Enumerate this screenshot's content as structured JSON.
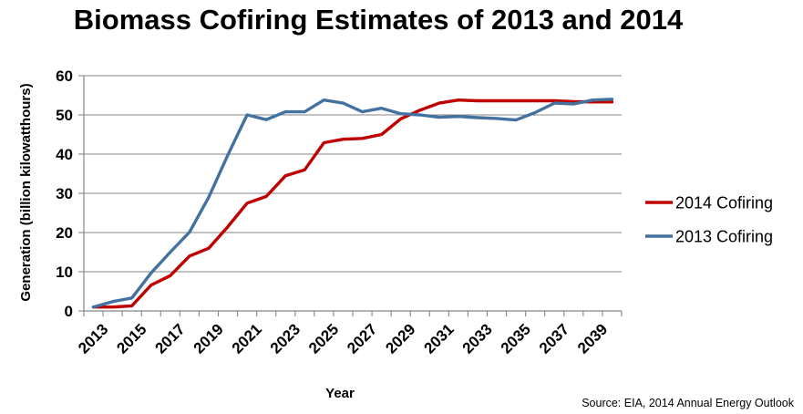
{
  "chart_data": {
    "type": "line",
    "title": "Biomass Cofiring Estimates of 2013 and 2014",
    "xlabel": "Year",
    "ylabel": "Generation (billion kilowatthours)",
    "source": "Source: EIA, 2014 Annual Energy Outlook",
    "x": [
      2013,
      2014,
      2015,
      2016,
      2017,
      2018,
      2019,
      2020,
      2021,
      2022,
      2023,
      2024,
      2025,
      2026,
      2027,
      2028,
      2029,
      2030,
      2031,
      2032,
      2033,
      2034,
      2035,
      2036,
      2037,
      2038,
      2039,
      2040
    ],
    "x_tick_labels": [
      "2013",
      "2015",
      "2017",
      "2019",
      "2021",
      "2023",
      "2025",
      "2027",
      "2029",
      "2031",
      "2033",
      "2035",
      "2037",
      "2039"
    ],
    "ylim": [
      0,
      60
    ],
    "y_ticks": [
      0,
      10,
      20,
      30,
      40,
      50,
      60
    ],
    "grid": "horizontal",
    "legend_position": "right",
    "series": [
      {
        "name": "2014 Cofiring",
        "color": "#C00000",
        "values": [
          1.0,
          1.0,
          1.3,
          6.6,
          9.0,
          14.0,
          16.0,
          21.5,
          27.5,
          29.2,
          34.5,
          36.0,
          42.9,
          43.8,
          44.0,
          45.0,
          49.0,
          51.2,
          53.0,
          53.8,
          53.6,
          53.6,
          53.6,
          53.6,
          53.6,
          53.4,
          53.3,
          53.3
        ]
      },
      {
        "name": "2013 Cofiring",
        "color": "#4472A0",
        "values": [
          1.0,
          2.4,
          3.3,
          9.7,
          15.0,
          20.1,
          29.0,
          39.8,
          50.0,
          48.8,
          50.8,
          50.8,
          53.8,
          53.0,
          50.8,
          51.7,
          50.3,
          50.0,
          49.4,
          49.6,
          49.3,
          49.1,
          48.7,
          50.6,
          53.0,
          52.8,
          53.8,
          54.0
        ]
      }
    ]
  }
}
